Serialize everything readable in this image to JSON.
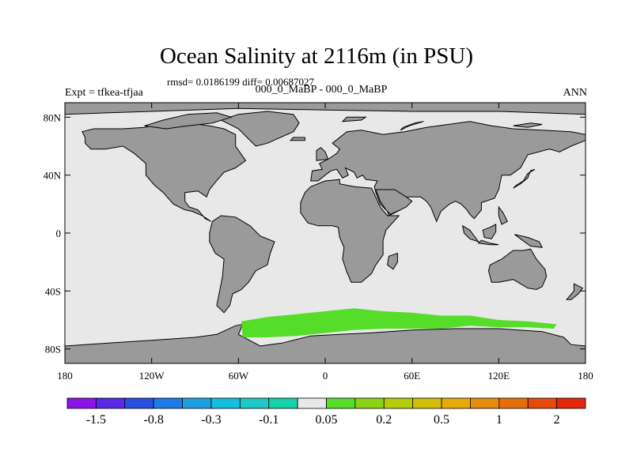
{
  "title": "Ocean Salinity at 2116m (in PSU)",
  "stats": "rmsd= 0.0186199 diff= 0.00687027",
  "subtitle": "000_0_MaBP - 000_0_MaBP",
  "expt_label": "Expt = tfkea-tfjaa",
  "season_label": "ANN",
  "lat_ticks": [
    {
      "value": 80,
      "label": "80N"
    },
    {
      "value": 40,
      "label": "40N"
    },
    {
      "value": 0,
      "label": "0"
    },
    {
      "value": -40,
      "label": "40S"
    },
    {
      "value": -80,
      "label": "80S"
    }
  ],
  "lon_ticks": [
    {
      "value": -180,
      "label": "180"
    },
    {
      "value": -120,
      "label": "120W"
    },
    {
      "value": -60,
      "label": "60W"
    },
    {
      "value": 0,
      "label": "0"
    },
    {
      "value": 60,
      "label": "60E"
    },
    {
      "value": 120,
      "label": "120E"
    },
    {
      "value": 180,
      "label": "180"
    }
  ],
  "colors": {
    "ocean_background": "#e8e8e8",
    "land": "#9a9a9a",
    "coastline": "#000000",
    "anomaly_patch": "#55dd2a"
  },
  "anomaly_patch_bin": "0.05 to 0.2",
  "colorbar": {
    "colors": [
      "#8a14e6",
      "#5a28e6",
      "#2a50e0",
      "#1e7ae6",
      "#1ea0e0",
      "#14bede",
      "#1ec8c8",
      "#14d2aa",
      "#e8e8e8",
      "#55dd2a",
      "#8cd214",
      "#b4cc0a",
      "#d2be0a",
      "#e6aa0a",
      "#e68c0a",
      "#e66e0a",
      "#e64a0a",
      "#e0280a"
    ],
    "labels": [
      {
        "boundary": 1,
        "text": "-1.5"
      },
      {
        "boundary": 3,
        "text": "-0.8"
      },
      {
        "boundary": 5,
        "text": "-0.3"
      },
      {
        "boundary": 7,
        "text": "-0.1"
      },
      {
        "boundary": 9,
        "text": "0.05"
      },
      {
        "boundary": 11,
        "text": "0.2"
      },
      {
        "boundary": 13,
        "text": "0.5"
      },
      {
        "boundary": 15,
        "text": "1"
      },
      {
        "boundary": 17,
        "text": "2"
      }
    ]
  },
  "land_polygons": [
    {
      "name": "north-america",
      "points": [
        [
          -168,
          70
        ],
        [
          -160,
          72
        ],
        [
          -140,
          72
        ],
        [
          -125,
          73
        ],
        [
          -110,
          76
        ],
        [
          -95,
          76
        ],
        [
          -80,
          74
        ],
        [
          -70,
          72
        ],
        [
          -62,
          68
        ],
        [
          -62,
          60
        ],
        [
          -55,
          50
        ],
        [
          -62,
          45
        ],
        [
          -70,
          42
        ],
        [
          -76,
          35
        ],
        [
          -80,
          30
        ],
        [
          -82,
          25
        ],
        [
          -88,
          29
        ],
        [
          -97,
          28
        ],
        [
          -97,
          22
        ],
        [
          -94,
          18
        ],
        [
          -88,
          16
        ],
        [
          -83,
          10
        ],
        [
          -79,
          8
        ],
        [
          -85,
          12
        ],
        [
          -92,
          15
        ],
        [
          -97,
          16
        ],
        [
          -105,
          20
        ],
        [
          -112,
          28
        ],
        [
          -118,
          33
        ],
        [
          -124,
          40
        ],
        [
          -124,
          48
        ],
        [
          -132,
          55
        ],
        [
          -140,
          60
        ],
        [
          -152,
          58
        ],
        [
          -162,
          58
        ],
        [
          -166,
          62
        ],
        [
          -166,
          66
        ]
      ]
    },
    {
      "name": "greenland",
      "points": [
        [
          -72,
          78
        ],
        [
          -60,
          82
        ],
        [
          -40,
          84
        ],
        [
          -22,
          82
        ],
        [
          -18,
          76
        ],
        [
          -22,
          70
        ],
        [
          -40,
          62
        ],
        [
          -48,
          60
        ],
        [
          -54,
          66
        ],
        [
          -60,
          72
        ]
      ]
    },
    {
      "name": "canadian-arctic",
      "points": [
        [
          -125,
          74
        ],
        [
          -112,
          78
        ],
        [
          -95,
          82
        ],
        [
          -75,
          83
        ],
        [
          -65,
          80
        ],
        [
          -78,
          76
        ],
        [
          -95,
          74
        ],
        [
          -110,
          72
        ]
      ]
    },
    {
      "name": "south-america",
      "points": [
        [
          -78,
          8
        ],
        [
          -72,
          12
        ],
        [
          -62,
          11
        ],
        [
          -52,
          5
        ],
        [
          -45,
          -2
        ],
        [
          -35,
          -6
        ],
        [
          -38,
          -14
        ],
        [
          -40,
          -22
        ],
        [
          -48,
          -26
        ],
        [
          -53,
          -34
        ],
        [
          -58,
          -39
        ],
        [
          -64,
          -42
        ],
        [
          -66,
          -50
        ],
        [
          -70,
          -55
        ],
        [
          -75,
          -50
        ],
        [
          -73,
          -40
        ],
        [
          -71,
          -30
        ],
        [
          -70,
          -18
        ],
        [
          -76,
          -14
        ],
        [
          -80,
          -6
        ],
        [
          -80,
          0
        ]
      ]
    },
    {
      "name": "eurasia",
      "points": [
        [
          -10,
          36
        ],
        [
          -9,
          43
        ],
        [
          -2,
          44
        ],
        [
          -4,
          48
        ],
        [
          2,
          51
        ],
        [
          8,
          55
        ],
        [
          10,
          58
        ],
        [
          5,
          62
        ],
        [
          15,
          70
        ],
        [
          25,
          71
        ],
        [
          40,
          68
        ],
        [
          55,
          70
        ],
        [
          70,
          73
        ],
        [
          85,
          75
        ],
        [
          100,
          77
        ],
        [
          115,
          74
        ],
        [
          130,
          72
        ],
        [
          150,
          71
        ],
        [
          170,
          70
        ],
        [
          180,
          68
        ],
        [
          180,
          64
        ],
        [
          170,
          60
        ],
        [
          162,
          56
        ],
        [
          155,
          58
        ],
        [
          140,
          54
        ],
        [
          135,
          45
        ],
        [
          128,
          40
        ],
        [
          122,
          40
        ],
        [
          120,
          30
        ],
        [
          117,
          24
        ],
        [
          108,
          21
        ],
        [
          108,
          16
        ],
        [
          103,
          10
        ],
        [
          100,
          13
        ],
        [
          98,
          16
        ],
        [
          94,
          20
        ],
        [
          90,
          22
        ],
        [
          86,
          20
        ],
        [
          80,
          15
        ],
        [
          77,
          8
        ],
        [
          73,
          18
        ],
        [
          70,
          22
        ],
        [
          66,
          25
        ],
        [
          57,
          25
        ],
        [
          56,
          22
        ],
        [
          52,
          16
        ],
        [
          44,
          12
        ],
        [
          43,
          15
        ],
        [
          38,
          20
        ],
        [
          35,
          28
        ],
        [
          34,
          32
        ],
        [
          36,
          36
        ],
        [
          28,
          37
        ],
        [
          26,
          40
        ],
        [
          22,
          38
        ],
        [
          20,
          42
        ],
        [
          14,
          45
        ],
        [
          16,
          40
        ],
        [
          12,
          38
        ],
        [
          8,
          44
        ],
        [
          4,
          43
        ],
        [
          0,
          40
        ],
        [
          -5,
          36
        ]
      ]
    },
    {
      "name": "africa",
      "points": [
        [
          -17,
          21
        ],
        [
          -17,
          14
        ],
        [
          -12,
          7
        ],
        [
          -5,
          5
        ],
        [
          5,
          5
        ],
        [
          9,
          4
        ],
        [
          10,
          -3
        ],
        [
          13,
          -10
        ],
        [
          12,
          -18
        ],
        [
          15,
          -27
        ],
        [
          18,
          -34
        ],
        [
          25,
          -34
        ],
        [
          32,
          -28
        ],
        [
          35,
          -22
        ],
        [
          40,
          -15
        ],
        [
          40,
          -5
        ],
        [
          42,
          2
        ],
        [
          51,
          12
        ],
        [
          43,
          12
        ],
        [
          38,
          18
        ],
        [
          34,
          27
        ],
        [
          32,
          31
        ],
        [
          20,
          32
        ],
        [
          10,
          34
        ],
        [
          10,
          37
        ],
        [
          0,
          36
        ],
        [
          -10,
          32
        ],
        [
          -14,
          28
        ]
      ]
    },
    {
      "name": "madagascar",
      "points": [
        [
          44,
          -16
        ],
        [
          50,
          -14
        ],
        [
          50,
          -20
        ],
        [
          47,
          -25
        ],
        [
          43,
          -22
        ]
      ]
    },
    {
      "name": "arabia",
      "points": [
        [
          35,
          30
        ],
        [
          40,
          30
        ],
        [
          48,
          30
        ],
        [
          56,
          25
        ],
        [
          60,
          22
        ],
        [
          56,
          18
        ],
        [
          52,
          16
        ],
        [
          45,
          13
        ],
        [
          42,
          16
        ],
        [
          38,
          22
        ]
      ]
    },
    {
      "name": "indonesia-1",
      "points": [
        [
          95,
          5
        ],
        [
          100,
          2
        ],
        [
          106,
          -6
        ],
        [
          100,
          -4
        ],
        [
          96,
          0
        ]
      ]
    },
    {
      "name": "indonesia-2",
      "points": [
        [
          108,
          -5
        ],
        [
          114,
          -7
        ],
        [
          120,
          -8
        ],
        [
          114,
          -8
        ],
        [
          106,
          -7
        ]
      ]
    },
    {
      "name": "borneo",
      "points": [
        [
          109,
          2
        ],
        [
          114,
          4
        ],
        [
          118,
          6
        ],
        [
          118,
          1
        ],
        [
          115,
          -4
        ],
        [
          110,
          -3
        ]
      ]
    },
    {
      "name": "new-guinea",
      "points": [
        [
          131,
          -1
        ],
        [
          140,
          -3
        ],
        [
          148,
          -6
        ],
        [
          150,
          -10
        ],
        [
          142,
          -9
        ],
        [
          135,
          -4
        ]
      ]
    },
    {
      "name": "japan",
      "points": [
        [
          130,
          31
        ],
        [
          135,
          34
        ],
        [
          140,
          38
        ],
        [
          142,
          43
        ],
        [
          145,
          44
        ],
        [
          140,
          41
        ],
        [
          137,
          36
        ],
        [
          132,
          33
        ]
      ]
    },
    {
      "name": "philippines",
      "points": [
        [
          120,
          18
        ],
        [
          123,
          14
        ],
        [
          126,
          8
        ],
        [
          122,
          6
        ],
        [
          120,
          12
        ]
      ]
    },
    {
      "name": "australia",
      "points": [
        [
          114,
          -22
        ],
        [
          122,
          -18
        ],
        [
          130,
          -12
        ],
        [
          137,
          -12
        ],
        [
          142,
          -11
        ],
        [
          146,
          -18
        ],
        [
          152,
          -25
        ],
        [
          153,
          -30
        ],
        [
          150,
          -37
        ],
        [
          146,
          -39
        ],
        [
          140,
          -38
        ],
        [
          135,
          -35
        ],
        [
          130,
          -32
        ],
        [
          120,
          -34
        ],
        [
          115,
          -34
        ],
        [
          113,
          -26
        ]
      ]
    },
    {
      "name": "new-zealand",
      "points": [
        [
          172,
          -35
        ],
        [
          178,
          -38
        ],
        [
          175,
          -42
        ],
        [
          170,
          -46
        ],
        [
          167,
          -46
        ],
        [
          172,
          -40
        ]
      ]
    },
    {
      "name": "uk",
      "points": [
        [
          -6,
          50
        ],
        [
          2,
          51
        ],
        [
          0,
          56
        ],
        [
          -3,
          59
        ],
        [
          -6,
          57
        ]
      ]
    },
    {
      "name": "iceland",
      "points": [
        [
          -24,
          64
        ],
        [
          -14,
          64
        ],
        [
          -14,
          66
        ],
        [
          -22,
          66
        ]
      ]
    },
    {
      "name": "svalbard",
      "points": [
        [
          12,
          77
        ],
        [
          25,
          78
        ],
        [
          28,
          80
        ],
        [
          15,
          80
        ]
      ]
    },
    {
      "name": "novaya-zemlya",
      "points": [
        [
          52,
          71
        ],
        [
          58,
          74
        ],
        [
          68,
          77
        ],
        [
          62,
          76
        ],
        [
          54,
          73
        ]
      ]
    },
    {
      "name": "siberian-islands",
      "points": [
        [
          130,
          74
        ],
        [
          142,
          76
        ],
        [
          150,
          75
        ],
        [
          140,
          73
        ]
      ]
    },
    {
      "name": "arctic-fringe",
      "points": [
        [
          -180,
          82
        ],
        [
          -120,
          84
        ],
        [
          -60,
          86
        ],
        [
          0,
          85
        ],
        [
          60,
          84
        ],
        [
          120,
          84
        ],
        [
          180,
          82
        ],
        [
          180,
          90
        ],
        [
          -180,
          90
        ]
      ]
    },
    {
      "name": "antarctica",
      "points": [
        [
          -180,
          -78
        ],
        [
          -150,
          -76
        ],
        [
          -120,
          -74
        ],
        [
          -90,
          -72
        ],
        [
          -75,
          -70
        ],
        [
          -62,
          -64
        ],
        [
          -57,
          -63
        ],
        [
          -60,
          -70
        ],
        [
          -45,
          -78
        ],
        [
          -30,
          -76
        ],
        [
          -10,
          -71
        ],
        [
          10,
          -70
        ],
        [
          30,
          -69
        ],
        [
          60,
          -67
        ],
        [
          90,
          -66
        ],
        [
          120,
          -66
        ],
        [
          150,
          -68
        ],
        [
          165,
          -72
        ],
        [
          170,
          -77
        ],
        [
          180,
          -78
        ],
        [
          180,
          -90
        ],
        [
          -180,
          -90
        ]
      ]
    }
  ],
  "anomaly_patch": {
    "points": [
      [
        -58,
        -61
      ],
      [
        -40,
        -58
      ],
      [
        -20,
        -56
      ],
      [
        0,
        -54
      ],
      [
        20,
        -52
      ],
      [
        40,
        -54
      ],
      [
        60,
        -55
      ],
      [
        80,
        -57
      ],
      [
        100,
        -57
      ],
      [
        120,
        -60
      ],
      [
        140,
        -61
      ],
      [
        160,
        -63
      ],
      [
        158,
        -66
      ],
      [
        140,
        -65
      ],
      [
        120,
        -65
      ],
      [
        100,
        -64
      ],
      [
        80,
        -66
      ],
      [
        60,
        -66
      ],
      [
        40,
        -66
      ],
      [
        20,
        -67
      ],
      [
        0,
        -69
      ],
      [
        -20,
        -71
      ],
      [
        -40,
        -72
      ],
      [
        -57,
        -72
      ]
    ]
  }
}
